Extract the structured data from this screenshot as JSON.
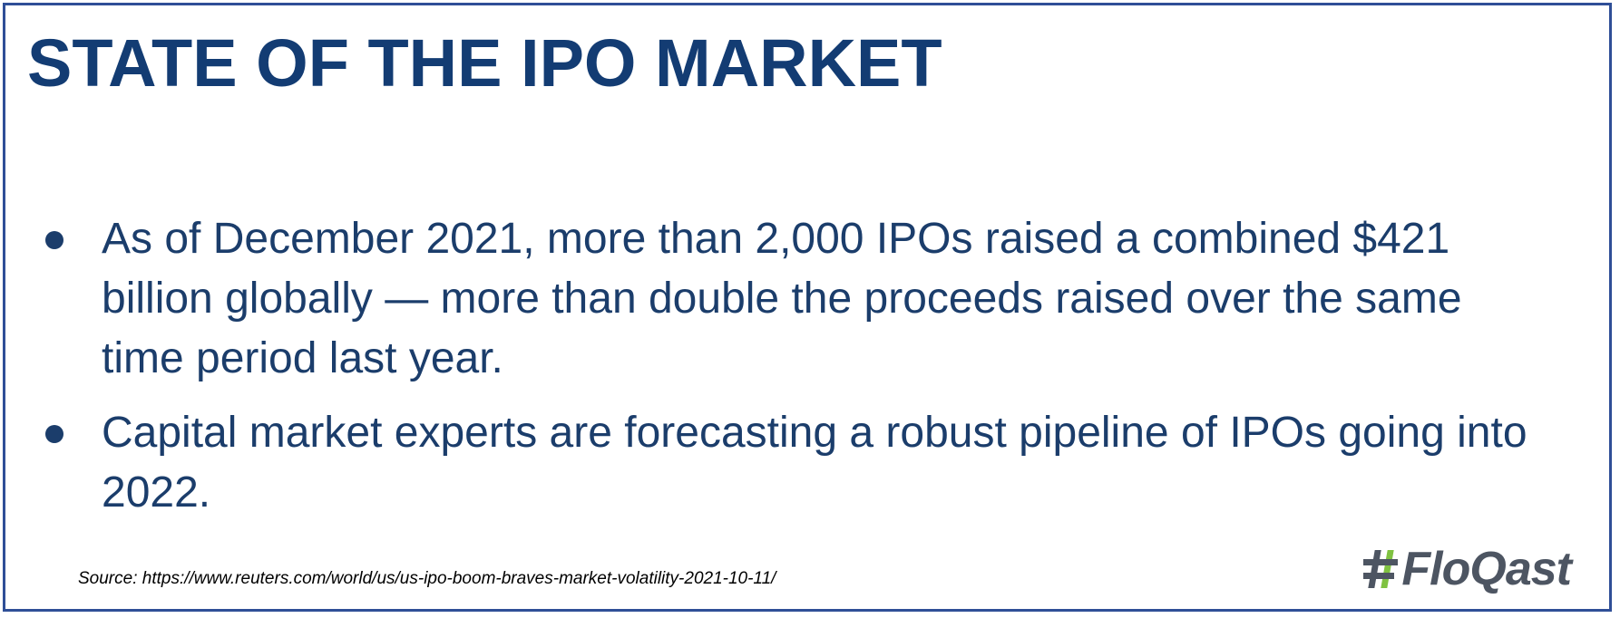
{
  "slide": {
    "title": "STATE OF THE IPO MARKET",
    "bullets": [
      "As of December 2021, more than 2,000 IPOs raised a combined $421 billion globally — more than double the proceeds raised over the same time period last year.",
      "Capital market experts are forecasting a robust pipeline of IPOs going into 2022."
    ],
    "source": "Source: https://www.reuters.com/world/us/us-ipo-boom-braves-market-volatility-2021-10-11/",
    "logo": {
      "text": "FloQast",
      "icon": "floqast-hash-icon"
    },
    "colors": {
      "title": "#133c73",
      "body": "#1b3d6b",
      "border": "#2f4f97",
      "logo_gray": "#4d5562",
      "logo_green": "#7fc241"
    }
  }
}
